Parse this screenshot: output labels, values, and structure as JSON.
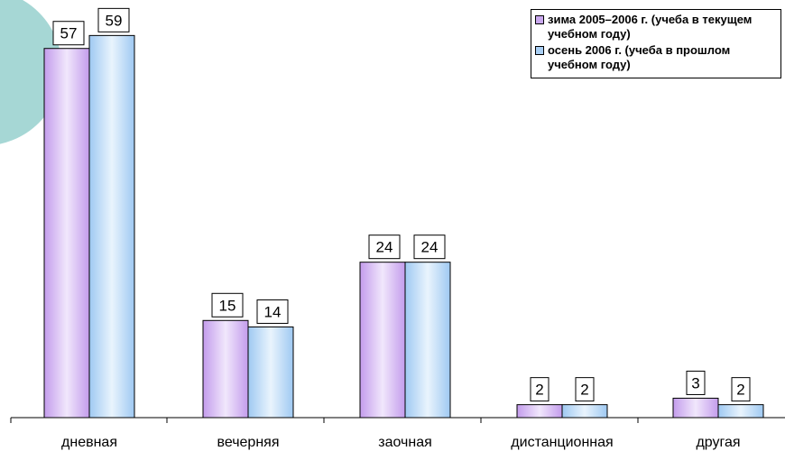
{
  "chart_data": {
    "type": "bar",
    "title": "",
    "xlabel": "",
    "ylabel": "",
    "ylim": [
      0,
      61
    ],
    "grid": false,
    "legend_position": "top-right",
    "categories": [
      "дневная",
      "вечерняя",
      "заочная",
      "дистанционная",
      "другая"
    ],
    "series": [
      {
        "name": "зима 2005–2006 г. (учеба в текущем учебном году)",
        "values": [
          57,
          15,
          24,
          2,
          3
        ],
        "color": "#c9a8ee"
      },
      {
        "name": "осень 2006 г. (учеба в прошлом учебном году)",
        "values": [
          59,
          14,
          24,
          2,
          2
        ],
        "color": "#a9cff4"
      }
    ]
  }
}
